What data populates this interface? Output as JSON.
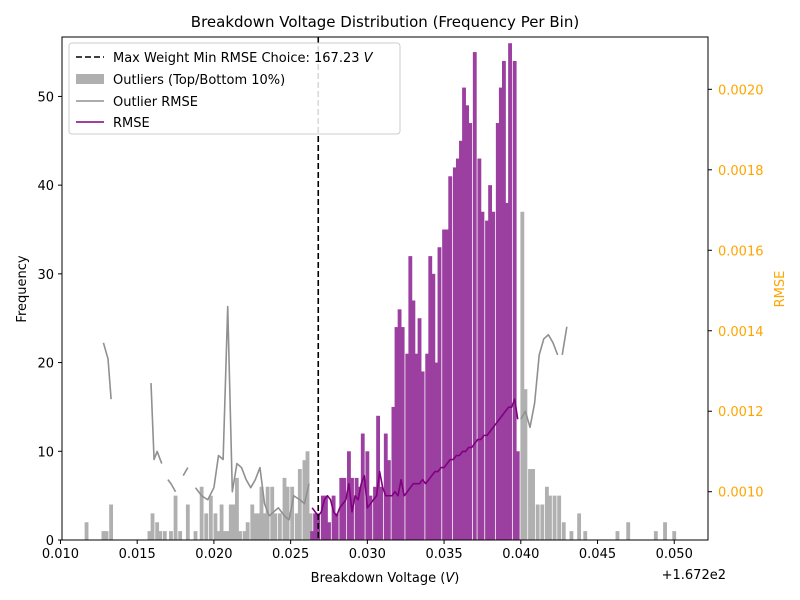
{
  "chart_data": {
    "type": "bar",
    "title": "Breakdown Voltage Distribution (Frequency Per Bin)",
    "xlabel": "Breakdown Voltage (V)",
    "ylabel": "Frequency",
    "ylabel_right": "RMSE",
    "x_offset_label": "+1.672e2",
    "xlim": [
      0.0101,
      0.0522
    ],
    "ylim": [
      0,
      56.7
    ],
    "ylim_right": [
      0.00088,
      0.00213
    ],
    "x_ticks": [
      0.01,
      0.015,
      0.02,
      0.025,
      0.03,
      0.035,
      0.04,
      0.045,
      0.05
    ],
    "x_tick_labels": [
      "0.010",
      "0.015",
      "0.020",
      "0.025",
      "0.030",
      "0.035",
      "0.040",
      "0.045",
      "0.050"
    ],
    "y_ticks": [
      0,
      10,
      20,
      30,
      40,
      50
    ],
    "y_tick_labels": [
      "0",
      "10",
      "20",
      "30",
      "40",
      "50"
    ],
    "y_right_ticks": [
      0.001,
      0.0012,
      0.0014,
      0.0016,
      0.0018,
      0.002
    ],
    "y_right_tick_labels": [
      "0.0010",
      "0.0012",
      "0.0014",
      "0.0016",
      "0.0018",
      "0.0020"
    ],
    "colors": {
      "outlier_bar": "#b0b0b0",
      "rmse_bar": "#9b3fa0",
      "outlier_line": "#909090",
      "rmse_line": "#800080",
      "right_axis": "#ffa500",
      "vline": "#000000"
    },
    "legend": {
      "position": "upper-left",
      "entries": [
        {
          "kind": "dashed",
          "label_text": "Max Weight Min RMSE Choice: 167.23 ",
          "label_italic": "V"
        },
        {
          "kind": "patch",
          "label_text": "Outliers (Top/Bottom 10%)"
        },
        {
          "kind": "line-gray",
          "label_text": "Outlier RMSE"
        },
        {
          "kind": "line-purple",
          "label_text": "RMSE"
        }
      ]
    },
    "vline_x": 0.0268,
    "bin_width": 0.00025,
    "outlier_bars": [
      [
        0.0117,
        2
      ],
      [
        0.0128,
        1
      ],
      [
        0.013,
        1
      ],
      [
        0.0133,
        4
      ],
      [
        0.0158,
        1
      ],
      [
        0.016,
        3
      ],
      [
        0.0163,
        2
      ],
      [
        0.0165,
        1
      ],
      [
        0.0168,
        1
      ],
      [
        0.0172,
        1
      ],
      [
        0.0175,
        5
      ],
      [
        0.0178,
        1
      ],
      [
        0.0183,
        4
      ],
      [
        0.0188,
        1
      ],
      [
        0.0192,
        6
      ],
      [
        0.0195,
        3
      ],
      [
        0.0198,
        5
      ],
      [
        0.0201,
        3
      ],
      [
        0.0203,
        1
      ],
      [
        0.0205,
        4
      ],
      [
        0.0207,
        1
      ],
      [
        0.0209,
        1
      ],
      [
        0.0211,
        4
      ],
      [
        0.0213,
        4
      ],
      [
        0.0215,
        7
      ],
      [
        0.0217,
        1
      ],
      [
        0.022,
        1
      ],
      [
        0.0222,
        2
      ],
      [
        0.0225,
        4
      ],
      [
        0.0227,
        3
      ],
      [
        0.0229,
        3
      ],
      [
        0.0231,
        6
      ],
      [
        0.0233,
        3
      ],
      [
        0.0235,
        6
      ],
      [
        0.0238,
        6
      ],
      [
        0.024,
        3
      ],
      [
        0.0243,
        3
      ],
      [
        0.0246,
        7
      ],
      [
        0.0248,
        6
      ],
      [
        0.0251,
        6
      ],
      [
        0.0254,
        3
      ],
      [
        0.0256,
        8
      ],
      [
        0.0259,
        9
      ],
      [
        0.0261,
        10
      ],
      [
        0.0263,
        3
      ],
      [
        0.0401,
        37
      ],
      [
        0.0403,
        17
      ],
      [
        0.0406,
        8
      ],
      [
        0.0408,
        8
      ],
      [
        0.0411,
        4
      ],
      [
        0.0414,
        4
      ],
      [
        0.0417,
        6
      ],
      [
        0.0419,
        5
      ],
      [
        0.0422,
        5
      ],
      [
        0.0425,
        5
      ],
      [
        0.0428,
        2
      ],
      [
        0.0433,
        1
      ],
      [
        0.0438,
        3
      ],
      [
        0.0442,
        1
      ],
      [
        0.0463,
        1
      ],
      [
        0.047,
        2
      ],
      [
        0.0488,
        1
      ],
      [
        0.0494,
        2
      ],
      [
        0.05,
        1
      ]
    ],
    "rmse_bars": [
      [
        0.0264,
        1
      ],
      [
        0.0266,
        3
      ],
      [
        0.0268,
        3
      ],
      [
        0.0271,
        5
      ],
      [
        0.0273,
        5
      ],
      [
        0.0275,
        2
      ],
      [
        0.0278,
        5
      ],
      [
        0.028,
        3
      ],
      [
        0.0283,
        7
      ],
      [
        0.0285,
        7
      ],
      [
        0.0288,
        10
      ],
      [
        0.029,
        7
      ],
      [
        0.0293,
        7
      ],
      [
        0.0295,
        6
      ],
      [
        0.0297,
        12
      ],
      [
        0.03,
        10
      ],
      [
        0.0302,
        5
      ],
      [
        0.0305,
        6
      ],
      [
        0.0307,
        14
      ],
      [
        0.0309,
        6
      ],
      [
        0.0312,
        12
      ],
      [
        0.0314,
        9
      ],
      [
        0.0317,
        15
      ],
      [
        0.0319,
        24
      ],
      [
        0.0321,
        26
      ],
      [
        0.0323,
        24
      ],
      [
        0.0326,
        21
      ],
      [
        0.0328,
        32
      ],
      [
        0.033,
        27
      ],
      [
        0.0332,
        21
      ],
      [
        0.0334,
        25
      ],
      [
        0.0336,
        19
      ],
      [
        0.0339,
        21
      ],
      [
        0.0341,
        32
      ],
      [
        0.0343,
        30
      ],
      [
        0.0345,
        20
      ],
      [
        0.0347,
        33
      ],
      [
        0.035,
        35
      ],
      [
        0.0352,
        35
      ],
      [
        0.0354,
        41
      ],
      [
        0.0357,
        42
      ],
      [
        0.0359,
        43
      ],
      [
        0.0361,
        45
      ],
      [
        0.0363,
        51
      ],
      [
        0.0365,
        49
      ],
      [
        0.0367,
        47
      ],
      [
        0.037,
        55
      ],
      [
        0.0373,
        43
      ],
      [
        0.0375,
        37
      ],
      [
        0.0378,
        36
      ],
      [
        0.038,
        40
      ],
      [
        0.0382,
        37
      ],
      [
        0.0385,
        47
      ],
      [
        0.0387,
        51
      ],
      [
        0.0389,
        54
      ],
      [
        0.0391,
        38
      ],
      [
        0.0393,
        56
      ],
      [
        0.0396,
        54
      ],
      [
        0.0398,
        10
      ]
    ],
    "outlier_rmse_segments": [
      [
        [
          0.0128,
          0.00137
        ],
        [
          0.0131,
          0.00133
        ],
        [
          0.0133,
          0.00123
        ]
      ],
      [
        [
          0.0159,
          0.00127
        ],
        [
          0.0161,
          0.00108
        ],
        [
          0.0163,
          0.0011
        ],
        [
          0.0166,
          0.00107
        ]
      ],
      [
        [
          0.017,
          0.00103
        ],
        [
          0.0172,
          0.00102
        ],
        [
          0.0175,
          0.001
        ]
      ],
      [
        [
          0.018,
          0.00104
        ],
        [
          0.0183,
          0.00106
        ]
      ],
      [
        [
          0.0188,
          0.00101
        ],
        [
          0.0192,
          0.00099
        ],
        [
          0.0196,
          0.00098
        ],
        [
          0.02,
          0.00101
        ],
        [
          0.0203,
          0.00109
        ],
        [
          0.0206,
          0.00108
        ],
        [
          0.0209,
          0.00146
        ],
        [
          0.0212,
          0.001
        ],
        [
          0.0215,
          0.00107
        ],
        [
          0.0218,
          0.00106
        ],
        [
          0.0221,
          0.00103
        ],
        [
          0.0224,
          0.00101
        ],
        [
          0.0227,
          0.00103
        ],
        [
          0.023,
          0.00106
        ],
        [
          0.0233,
          0.00097
        ],
        [
          0.0236,
          0.00094
        ],
        [
          0.0239,
          0.00095
        ],
        [
          0.0242,
          0.00096
        ],
        [
          0.0246,
          0.00094
        ],
        [
          0.0249,
          0.00093
        ],
        [
          0.0252,
          0.00099
        ],
        [
          0.0256,
          0.00098
        ],
        [
          0.0259,
          0.00097
        ],
        [
          0.0262,
          0.00102
        ]
      ],
      [
        [
          0.04,
          0.00118
        ],
        [
          0.0403,
          0.0012
        ],
        [
          0.0406,
          0.00116
        ],
        [
          0.0409,
          0.00122
        ],
        [
          0.0412,
          0.00134
        ],
        [
          0.0415,
          0.00138
        ],
        [
          0.0418,
          0.00139
        ],
        [
          0.0421,
          0.00137
        ],
        [
          0.0424,
          0.00134
        ]
      ],
      [
        [
          0.0427,
          0.00134
        ],
        [
          0.043,
          0.00141
        ]
      ]
    ],
    "rmse_line": [
      [
        0.0264,
        0.00096
      ],
      [
        0.0266,
        0.00095
      ],
      [
        0.0268,
        0.00094
      ],
      [
        0.027,
        0.00095
      ],
      [
        0.0272,
        0.00098
      ],
      [
        0.0274,
        0.00099
      ],
      [
        0.0276,
        0.00098
      ],
      [
        0.0278,
        0.00095
      ],
      [
        0.028,
        0.00094
      ],
      [
        0.0282,
        0.00096
      ],
      [
        0.0284,
        0.00097
      ],
      [
        0.0286,
        0.00098
      ],
      [
        0.0288,
        0.00102
      ],
      [
        0.029,
        0.00095
      ],
      [
        0.0292,
        0.00099
      ],
      [
        0.0294,
        0.00098
      ],
      [
        0.0296,
        0.00102
      ],
      [
        0.0298,
        0.00104
      ],
      [
        0.03,
        0.00096
      ],
      [
        0.0302,
        0.00097
      ],
      [
        0.0304,
        0.00098
      ],
      [
        0.0306,
        0.00099
      ],
      [
        0.0308,
        0.00105
      ],
      [
        0.031,
        0.00101
      ],
      [
        0.0312,
        0.00099
      ],
      [
        0.0314,
        0.00099
      ],
      [
        0.0316,
        0.00099
      ],
      [
        0.0318,
        0.001
      ],
      [
        0.032,
        0.00099
      ],
      [
        0.0322,
        0.00103
      ],
      [
        0.0324,
        0.00099
      ],
      [
        0.0326,
        0.001
      ],
      [
        0.0328,
        0.00101
      ],
      [
        0.033,
        0.00102
      ],
      [
        0.0332,
        0.00102
      ],
      [
        0.0334,
        0.00102
      ],
      [
        0.0336,
        0.00103
      ],
      [
        0.0338,
        0.00102
      ],
      [
        0.034,
        0.00103
      ],
      [
        0.0342,
        0.00104
      ],
      [
        0.0344,
        0.00105
      ],
      [
        0.0346,
        0.00105
      ],
      [
        0.0348,
        0.00106
      ],
      [
        0.035,
        0.00106
      ],
      [
        0.0352,
        0.00107
      ],
      [
        0.0354,
        0.00108
      ],
      [
        0.0356,
        0.00108
      ],
      [
        0.0358,
        0.00109
      ],
      [
        0.036,
        0.00109
      ],
      [
        0.0362,
        0.0011
      ],
      [
        0.0364,
        0.0011
      ],
      [
        0.0366,
        0.00111
      ],
      [
        0.0368,
        0.00111
      ],
      [
        0.037,
        0.00112
      ],
      [
        0.0372,
        0.00113
      ],
      [
        0.0374,
        0.00113
      ],
      [
        0.0376,
        0.00114
      ],
      [
        0.0378,
        0.00114
      ],
      [
        0.038,
        0.00115
      ],
      [
        0.0382,
        0.00116
      ],
      [
        0.0384,
        0.00117
      ],
      [
        0.0386,
        0.00118
      ],
      [
        0.0388,
        0.00119
      ],
      [
        0.039,
        0.0012
      ],
      [
        0.0392,
        0.00121
      ],
      [
        0.0394,
        0.00121
      ],
      [
        0.0396,
        0.00123
      ],
      [
        0.0398,
        0.00118
      ]
    ]
  }
}
